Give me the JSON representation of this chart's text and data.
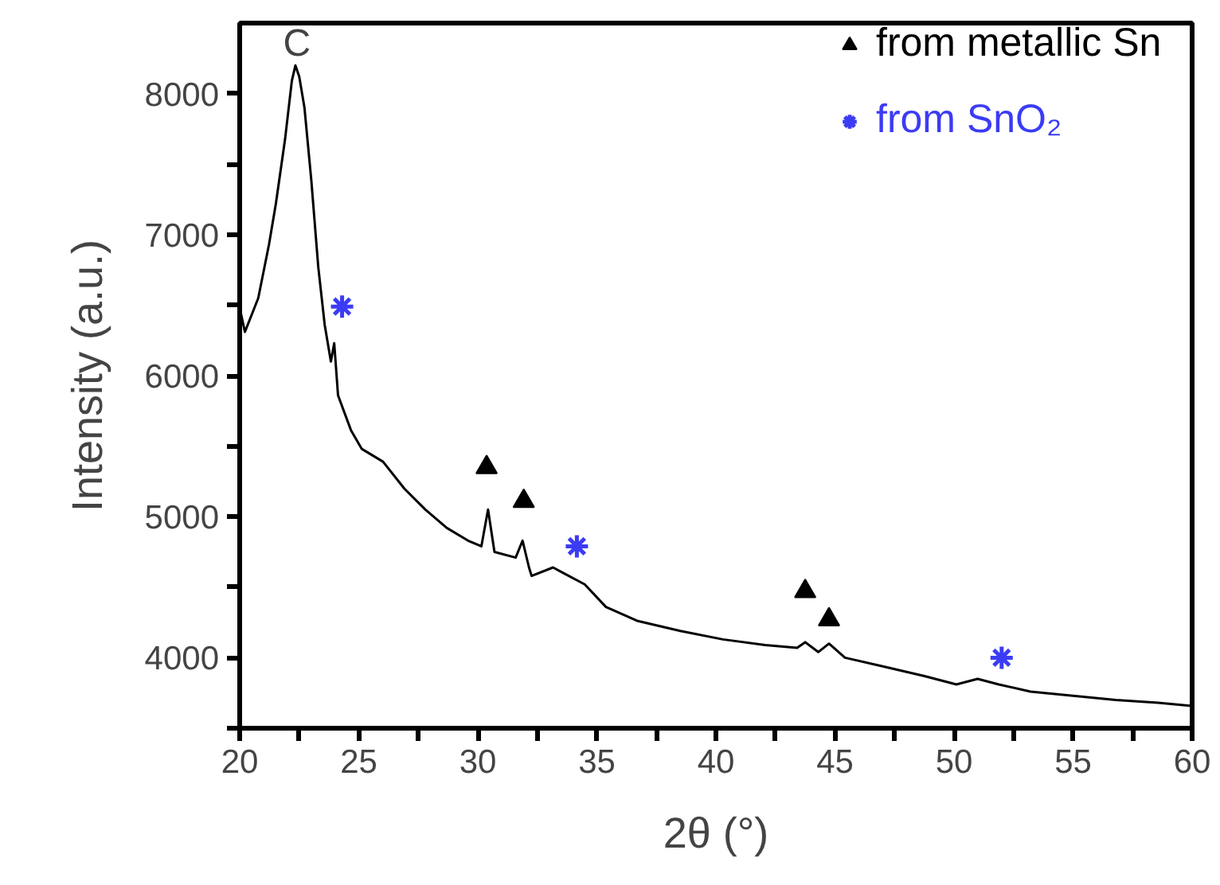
{
  "chart_data": {
    "type": "line",
    "xlabel": "2θ (°)",
    "ylabel": "Intensity (a.u.)",
    "xlim": [
      20,
      60
    ],
    "ylim": [
      3500,
      8500
    ],
    "xticks": [
      20,
      {
        "value": 22.5,
        "label": null
      },
      25,
      {
        "value": 27.5,
        "label": null
      },
      30,
      {
        "value": 32.5,
        "label": null
      },
      35,
      {
        "value": 37.5,
        "label": null
      },
      40,
      {
        "value": 42.5,
        "label": null
      },
      45,
      {
        "value": 47.5,
        "label": null
      },
      50,
      {
        "value": 52.5,
        "label": null
      },
      55,
      {
        "value": 57.5,
        "label": null
      },
      60
    ],
    "yticks": [
      {
        "value": 3500,
        "label": null
      },
      4000,
      {
        "value": 4500,
        "label": null
      },
      5000,
      {
        "value": 5500,
        "label": null
      },
      6000,
      {
        "value": 6500,
        "label": null
      },
      7000,
      {
        "value": 7500,
        "label": null
      },
      8000
    ],
    "grid": false,
    "legend": "top right",
    "marker": "none",
    "line_style": "solid",
    "series": [
      {
        "color": "#000000",
        "x": [
          20.0,
          20.22,
          20.78,
          21.23,
          21.52,
          21.9,
          22.19,
          22.34,
          22.5,
          22.72,
          23.01,
          23.3,
          23.57,
          23.83,
          23.97,
          24.13,
          24.68,
          25.13,
          26.02,
          26.91,
          27.8,
          28.7,
          29.59,
          30.15,
          30.43,
          30.7,
          31.59,
          31.88,
          32.15,
          32.26,
          33.16,
          33.6,
          34.49,
          35.38,
          36.72,
          38.5,
          40.29,
          42.07,
          43.41,
          43.75,
          44.3,
          44.75,
          45.42,
          46.97,
          48.76,
          50.1,
          50.99,
          51.88,
          53.21,
          55.0,
          56.79,
          58.57,
          59.9
        ],
        "values": [
          6480,
          6310,
          6550,
          6930,
          7220,
          7670,
          8090,
          8200,
          8120,
          7900,
          7380,
          6770,
          6360,
          6100,
          6230,
          5860,
          5610,
          5480,
          5390,
          5200,
          5050,
          4920,
          4830,
          4790,
          5050,
          4750,
          4710,
          4830,
          4640,
          4580,
          4640,
          4600,
          4520,
          4360,
          4260,
          4190,
          4130,
          4090,
          4070,
          4110,
          4040,
          4100,
          4000,
          3940,
          3870,
          3810,
          3850,
          3810,
          3760,
          3730,
          3700,
          3680,
          3660
        ]
      },
      {
        "type": "scatter",
        "name": "from metallic Sn",
        "color": "#000000",
        "marker": "triangle",
        "x": [
          30.37,
          31.93,
          43.75,
          44.75
        ],
        "values": [
          5350,
          5110,
          4470,
          4270
        ]
      },
      {
        "type": "scatter",
        "name": "from SnO₂",
        "color": "#3b3bf5",
        "marker": "cross",
        "x": [
          24.3,
          34.16,
          52.0
        ],
        "values": [
          6490,
          4790,
          4000
        ]
      }
    ],
    "annotations": [
      {
        "text": "C",
        "x": 22.4,
        "y": 8200
      }
    ]
  }
}
